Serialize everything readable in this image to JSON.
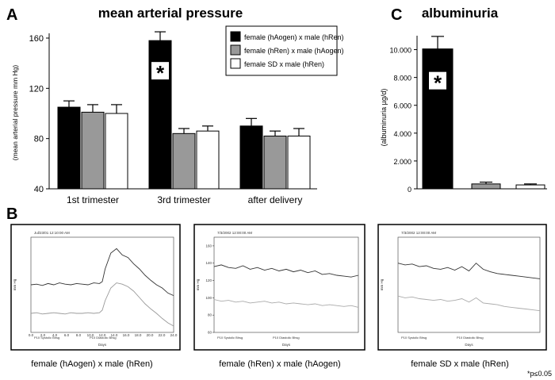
{
  "panel_labels": {
    "a": "A",
    "b": "B",
    "c": "C"
  },
  "significance_note": "*p≤0.05",
  "chart_data": [
    {
      "type": "bar",
      "title": "mean arterial pressure",
      "ylabel": "(mean arterial pressure mm Hg)",
      "xlabel": "",
      "ylim": [
        40,
        160
      ],
      "yticks": [
        "40",
        "80",
        "120",
        "160"
      ],
      "categories": [
        "1st trimester",
        "3rd trimester",
        "after delivery"
      ],
      "series": [
        {
          "name": "female (hAogen) x male (hRen)",
          "color": "#000000",
          "values": [
            105,
            158,
            90
          ],
          "errors": [
            5,
            7,
            6
          ]
        },
        {
          "name": "female (hRen) x male (hAogen)",
          "color": "#999999",
          "values": [
            101,
            84,
            82
          ],
          "errors": [
            6,
            4,
            4
          ]
        },
        {
          "name": "female SD x male (hRen)",
          "color": "#ffffff",
          "values": [
            100,
            86,
            82
          ],
          "errors": [
            7,
            4,
            6
          ]
        }
      ],
      "annotations": [
        {
          "text": "*",
          "category": "3rd trimester",
          "series": "female (hAogen) x male (hRen)"
        }
      ],
      "legend_position": "top-right",
      "grid": false
    },
    {
      "type": "bar",
      "title": "albuminuria",
      "ylabel": "(albuminuria µg/d)",
      "xlabel": "",
      "ylim": [
        0,
        11000
      ],
      "yticks": [
        "0",
        "2.000",
        "4.000",
        "6.000",
        "8.000",
        "10.000"
      ],
      "categories": [
        "female (hAogen) x male (hRen)",
        "female (hRen) x male (hAogen)",
        "female SD x male (hRen)"
      ],
      "series": [
        {
          "name": "",
          "values": [
            10050,
            350,
            280
          ],
          "errors": [
            900,
            130,
            70
          ],
          "colors": [
            "#000000",
            "#999999",
            "#ffffff"
          ]
        }
      ],
      "annotations": [
        {
          "text": "*",
          "category": "female (hAogen) x male (hRen)"
        }
      ],
      "grid": false
    },
    {
      "type": "line",
      "caption": "female (hAogen) x male (hRen)",
      "header": "Jul/23/01 12:10:00 AM",
      "ylabel": "mm Hg",
      "xlabel": "Days",
      "ylim": [
        60,
        210
      ],
      "yticks": [
        "60.0",
        "80.0",
        "100.0",
        "120.0",
        "140.0",
        "160.0",
        "180.0",
        "200.0"
      ],
      "xticks": [
        "0.0",
        "2.0",
        "4.0",
        "6.0",
        "8.0",
        "10.0",
        "12.0",
        "14.0",
        "16.0",
        "18.0",
        "20.0",
        "22.0",
        "24.0"
      ],
      "legend_text": [
        "P10 Systolic Bhsg",
        "P10 Diastolic Bhsg"
      ],
      "series": [
        {
          "name": "",
          "color": "#333333",
          "x": [
            0,
            1,
            2,
            3,
            4,
            5,
            6,
            7,
            8,
            9,
            10,
            11,
            12,
            12.5,
            13,
            14,
            15,
            16,
            17,
            18,
            19,
            20,
            21,
            22,
            23,
            24,
            25
          ],
          "values": [
            135,
            136,
            134,
            137,
            135,
            138,
            136,
            135,
            137,
            136,
            135,
            138,
            137,
            140,
            160,
            185,
            192,
            182,
            178,
            168,
            160,
            150,
            142,
            135,
            130,
            122,
            118
          ]
        },
        {
          "name": "",
          "color": "#999999",
          "x": [
            0,
            1,
            2,
            3,
            4,
            5,
            6,
            7,
            8,
            9,
            10,
            11,
            12,
            12.5,
            13,
            14,
            15,
            16,
            17,
            18,
            19,
            20,
            21,
            22,
            23,
            24,
            25
          ],
          "values": [
            90,
            91,
            89,
            90,
            91,
            90,
            89,
            91,
            90,
            90,
            91,
            90,
            91,
            95,
            110,
            130,
            138,
            136,
            132,
            125,
            115,
            105,
            97,
            90,
            82,
            75,
            70
          ]
        }
      ]
    },
    {
      "type": "line",
      "caption": "female (hRen) x male (hAogen)",
      "header": "7/3/2002 12:00:00 AM",
      "ylabel": "mm Hg",
      "xlabel": "Days",
      "ylim": [
        60,
        170
      ],
      "yticks": [
        "60",
        "80",
        "100",
        "120",
        "140",
        "160"
      ],
      "xticks": [],
      "legend_text": [
        "P10 Systolic Bhsg",
        "P10 Diastolic Bhsg"
      ],
      "series": [
        {
          "name": "",
          "color": "#333333",
          "x": [
            0,
            1,
            2,
            3,
            4,
            5,
            6,
            7,
            8,
            9,
            10,
            11,
            12,
            13,
            14,
            15,
            16,
            17,
            18,
            19,
            20
          ],
          "values": [
            136,
            138,
            135,
            134,
            137,
            133,
            135,
            132,
            134,
            131,
            133,
            130,
            132,
            129,
            131,
            127,
            128,
            126,
            125,
            124,
            126
          ]
        },
        {
          "name": "",
          "color": "#aaaaaa",
          "x": [
            0,
            1,
            2,
            3,
            4,
            5,
            6,
            7,
            8,
            9,
            10,
            11,
            12,
            13,
            14,
            15,
            16,
            17,
            18,
            19,
            20
          ],
          "values": [
            98,
            96,
            97,
            95,
            96,
            94,
            95,
            96,
            94,
            95,
            93,
            94,
            93,
            92,
            93,
            91,
            92,
            91,
            90,
            91,
            89
          ]
        }
      ]
    },
    {
      "type": "line",
      "caption": "female SD x male (hRen)",
      "header": "7/3/2002 12:00:00 AM",
      "ylabel": "mm Hg",
      "xlabel": "Days",
      "ylim": [
        60,
        170
      ],
      "yticks": [],
      "xticks": [],
      "legend_text": [
        "P10 Systolic Bhsg",
        "P10 Diastolic Bhsg"
      ],
      "series": [
        {
          "name": "",
          "color": "#333333",
          "x": [
            0,
            1,
            2,
            3,
            4,
            5,
            6,
            7,
            8,
            9,
            10,
            11,
            12,
            13,
            14,
            15,
            16,
            17,
            18,
            19,
            20
          ],
          "values": [
            140,
            138,
            139,
            136,
            137,
            134,
            133,
            135,
            132,
            136,
            131,
            140,
            133,
            130,
            128,
            127,
            126,
            125,
            124,
            123,
            122
          ]
        },
        {
          "name": "",
          "color": "#aaaaaa",
          "x": [
            0,
            1,
            2,
            3,
            4,
            5,
            6,
            7,
            8,
            9,
            10,
            11,
            12,
            13,
            14,
            15,
            16,
            17,
            18,
            19,
            20
          ],
          "values": [
            102,
            100,
            101,
            99,
            98,
            97,
            98,
            96,
            97,
            99,
            95,
            100,
            94,
            93,
            92,
            90,
            89,
            88,
            87,
            86,
            85
          ]
        }
      ]
    }
  ]
}
